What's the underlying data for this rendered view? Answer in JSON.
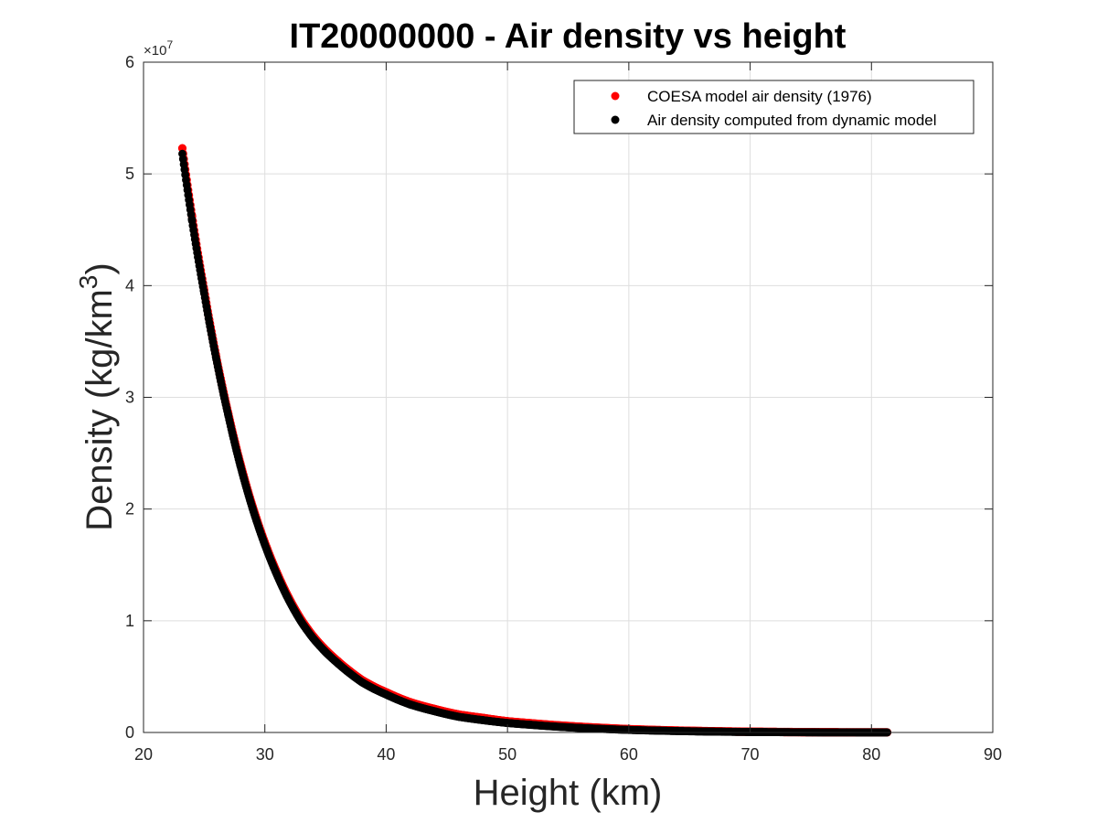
{
  "chart_data": {
    "type": "scatter",
    "title": "IT20000000 - Air density vs height",
    "xlabel": "Height (km)",
    "ylabel_prefix": "Density (kg/km",
    "ylabel_sup": "3",
    "ylabel_suffix": ")",
    "y_exponent_prefix": "×10",
    "y_exponent_power": "7",
    "xlim": [
      20,
      90
    ],
    "ylim": [
      0,
      6
    ],
    "xticks": [
      20,
      30,
      40,
      50,
      60,
      70,
      80,
      90
    ],
    "yticks": [
      0,
      1,
      2,
      3,
      4,
      5,
      6
    ],
    "grid": true,
    "legend_position": "top-right",
    "series": [
      {
        "name": "COESA model air density (1976)",
        "color": "#ff0000",
        "x": [
          23.2,
          24.0,
          25.0,
          26.0,
          27.0,
          28.0,
          29.0,
          30.0,
          31.0,
          32.0,
          33.0,
          34.0,
          35.0,
          36.0,
          37.0,
          38.0,
          39.0,
          40.0,
          42.0,
          44.0,
          46.0,
          48.0,
          50.0,
          52.0,
          55.0,
          58.0,
          60.0,
          63.0,
          66.0,
          70.0,
          74.0,
          78.0,
          81.3
        ],
        "y": [
          5.23,
          4.62,
          3.96,
          3.36,
          2.85,
          2.4,
          2.02,
          1.7,
          1.43,
          1.2,
          1.01,
          0.86,
          0.74,
          0.64,
          0.55,
          0.47,
          0.41,
          0.36,
          0.27,
          0.21,
          0.16,
          0.13,
          0.1,
          0.082,
          0.058,
          0.04,
          0.03,
          0.02,
          0.013,
          0.007,
          0.0035,
          0.0015,
          0.0008
        ]
      },
      {
        "name": "Air density computed from dynamic model",
        "color": "#000000",
        "x": [
          23.2,
          24.0,
          25.0,
          26.0,
          27.0,
          28.0,
          29.0,
          30.0,
          31.0,
          32.0,
          33.0,
          34.0,
          35.0,
          36.0,
          37.0,
          38.0,
          39.0,
          40.0,
          42.0,
          44.0,
          46.0,
          48.0,
          50.0,
          52.0,
          55.0,
          58.0,
          60.0,
          63.0,
          66.0,
          70.0,
          74.0,
          78.0,
          81.3
        ],
        "y": [
          5.18,
          4.58,
          3.93,
          3.34,
          2.83,
          2.38,
          2.0,
          1.68,
          1.41,
          1.18,
          0.99,
          0.84,
          0.72,
          0.62,
          0.53,
          0.45,
          0.39,
          0.34,
          0.25,
          0.19,
          0.14,
          0.11,
          0.085,
          0.068,
          0.046,
          0.031,
          0.023,
          0.015,
          0.009,
          0.0045,
          0.002,
          0.0008,
          0.0004
        ]
      }
    ]
  }
}
